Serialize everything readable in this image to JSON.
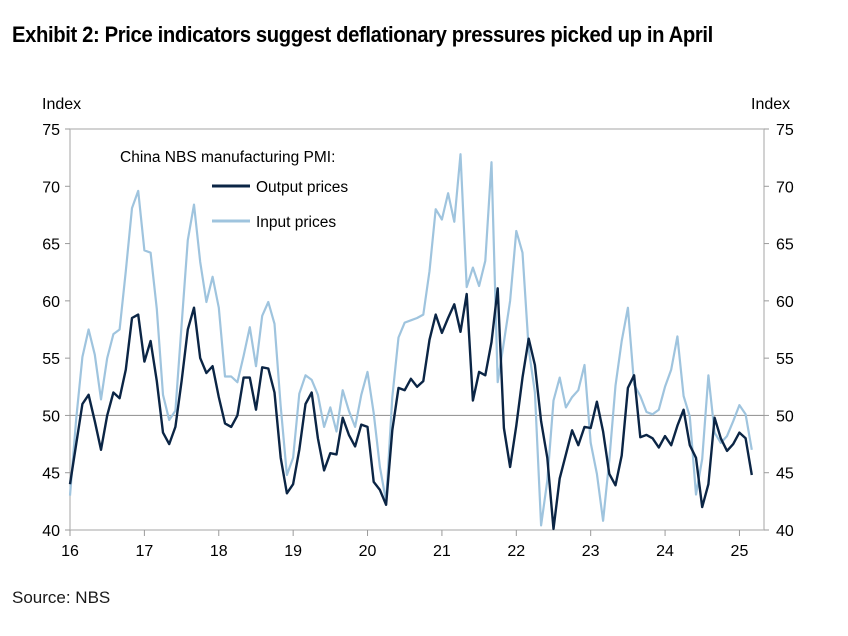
{
  "title": "Exhibit 2: Price indicators suggest deflationary pressures picked up in April",
  "source": "Source: NBS",
  "chart_data": {
    "type": "line",
    "left_axis_title": "Index",
    "right_axis_title": "Index",
    "legend_title": "China NBS manufacturing PMI:",
    "ylim": [
      40,
      75
    ],
    "y_ticks": [
      40,
      45,
      50,
      55,
      60,
      65,
      70,
      75
    ],
    "reference_line": 50,
    "x_start": 2016.0,
    "x_step": 0.08333,
    "x_ticks": [
      {
        "label": "16",
        "value": 2016
      },
      {
        "label": "17",
        "value": 2017
      },
      {
        "label": "18",
        "value": 2018
      },
      {
        "label": "19",
        "value": 2019
      },
      {
        "label": "20",
        "value": 2020
      },
      {
        "label": "21",
        "value": 2021
      },
      {
        "label": "22",
        "value": 2022
      },
      {
        "label": "23",
        "value": 2023
      },
      {
        "label": "24",
        "value": 2024
      },
      {
        "label": "25",
        "value": 2025
      }
    ],
    "series": [
      {
        "name": "Output prices",
        "color": "#0b2545",
        "values": [
          44.0,
          47.5,
          51.0,
          51.8,
          49.5,
          47.0,
          50.0,
          52.0,
          51.5,
          54.0,
          58.5,
          58.8,
          54.7,
          56.5,
          53.0,
          48.5,
          47.5,
          49.0,
          53.0,
          57.5,
          59.4,
          55.0,
          53.7,
          54.3,
          51.6,
          49.3,
          49.0,
          50.0,
          53.3,
          53.3,
          50.5,
          54.2,
          54.1,
          52.0,
          46.3,
          43.2,
          44.0,
          47.0,
          51.0,
          52.0,
          48.0,
          45.2,
          46.7,
          46.6,
          49.8,
          48.3,
          47.3,
          49.2,
          49.0,
          44.2,
          43.5,
          42.2,
          48.7,
          52.4,
          52.2,
          53.2,
          52.5,
          53.0,
          56.6,
          58.8,
          57.2,
          58.5,
          59.7,
          57.3,
          60.6,
          51.3,
          53.8,
          53.5,
          56.4,
          61.1,
          48.9,
          45.5,
          49.1,
          53.3,
          56.7,
          54.4,
          49.5,
          46.3,
          40.1,
          44.5,
          46.6,
          48.7,
          47.4,
          49.0,
          48.9,
          51.2,
          48.6,
          44.9,
          43.9,
          46.5,
          52.4,
          53.5,
          48.1,
          48.3,
          48.0,
          47.2,
          48.2,
          47.4,
          49.1,
          50.5,
          47.4,
          46.3,
          42.0,
          44.0,
          49.8,
          48.0,
          46.9,
          47.5,
          48.5,
          48.0,
          44.8
        ]
      },
      {
        "name": "Input prices",
        "color": "#9fc4de",
        "values": [
          43.0,
          49.7,
          55.1,
          57.5,
          55.3,
          51.4,
          55.0,
          57.1,
          57.5,
          62.6,
          68.1,
          69.6,
          64.4,
          64.2,
          59.3,
          51.8,
          49.6,
          50.4,
          57.9,
          65.3,
          68.4,
          63.4,
          59.9,
          62.1,
          59.4,
          53.4,
          53.4,
          52.9,
          55.2,
          57.7,
          54.3,
          58.7,
          59.9,
          58.0,
          50.8,
          44.8,
          46.3,
          51.9,
          53.5,
          53.1,
          51.8,
          49.0,
          50.7,
          48.6,
          52.2,
          50.4,
          49.0,
          51.8,
          53.8,
          50.2,
          45.5,
          42.5,
          51.6,
          56.8,
          58.1,
          58.3,
          58.5,
          58.8,
          62.6,
          68.0,
          67.1,
          69.4,
          66.9,
          72.8,
          61.2,
          62.9,
          61.3,
          63.5,
          72.1,
          52.9,
          56.4,
          60.0,
          66.1,
          64.2,
          55.8,
          52.0,
          40.4,
          44.3,
          51.3,
          53.3,
          50.7,
          51.6,
          52.2,
          54.4,
          47.6,
          44.9,
          40.8,
          46.1,
          52.6,
          56.5,
          59.4,
          52.7,
          51.7,
          50.3,
          50.1,
          50.5,
          52.5,
          54.0,
          56.9,
          51.7,
          49.9,
          43.1,
          46.2,
          53.5,
          48.5,
          47.6,
          48.2,
          49.5,
          50.9,
          50.1,
          47.0
        ]
      }
    ]
  }
}
